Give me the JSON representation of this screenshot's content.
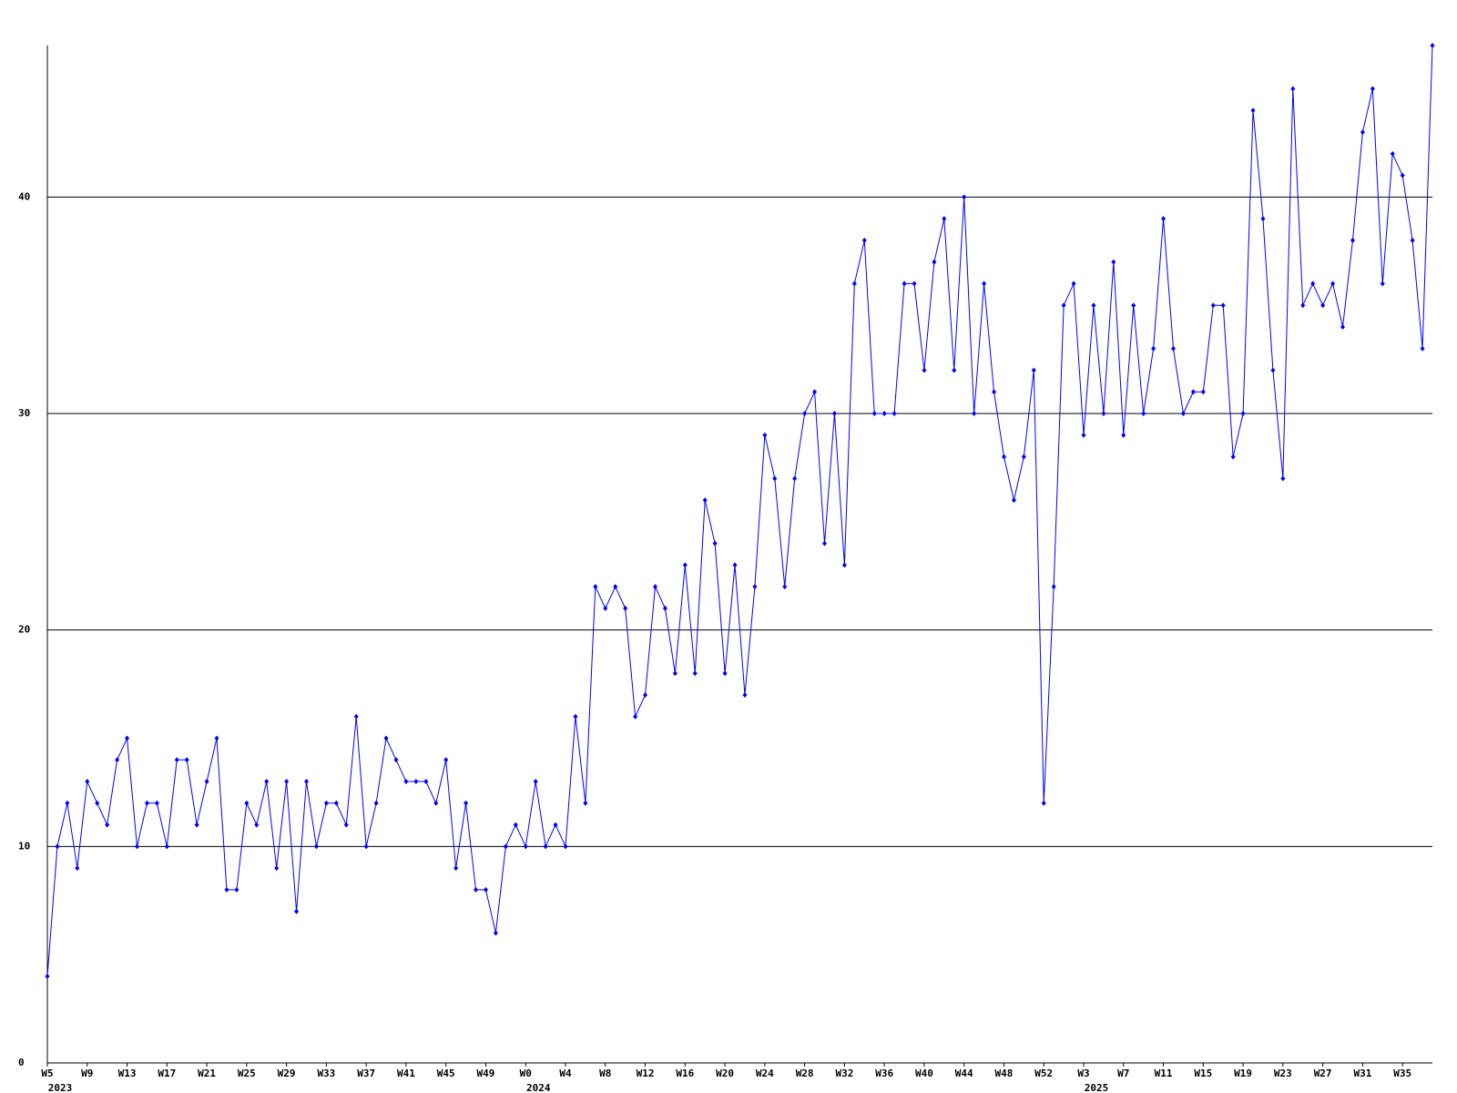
{
  "chart_data": {
    "type": "line",
    "categories": [
      "W5",
      null,
      null,
      null,
      "W9",
      null,
      null,
      null,
      "W13",
      null,
      null,
      null,
      "W17",
      null,
      null,
      null,
      "W21",
      null,
      null,
      null,
      "W25",
      null,
      null,
      null,
      "W29",
      null,
      null,
      null,
      "W33",
      null,
      null,
      null,
      "W37",
      null,
      null,
      null,
      "W41",
      null,
      null,
      null,
      "W45",
      null,
      null,
      null,
      "W49",
      null,
      null,
      null,
      "W0",
      null,
      null,
      null,
      "W4",
      null,
      null,
      null,
      "W8",
      null,
      null,
      null,
      "W12",
      null,
      null,
      null,
      "W16",
      null,
      null,
      null,
      "W20",
      null,
      null,
      null,
      "W24",
      null,
      null,
      null,
      "W28",
      null,
      null,
      null,
      "W32",
      null,
      null,
      null,
      "W36",
      null,
      null,
      null,
      "W40",
      null,
      null,
      null,
      "W44",
      null,
      null,
      null,
      "W48",
      null,
      null,
      null,
      "W52",
      null,
      null,
      null,
      "W3",
      null,
      null,
      null,
      "W7",
      null,
      null,
      null,
      "W11",
      null,
      null,
      null,
      "W15",
      null,
      null,
      null,
      "W19",
      null,
      null,
      null,
      "W23",
      null,
      null,
      null,
      "W27",
      null,
      null,
      null,
      "W31",
      null,
      null,
      null,
      "W35",
      null,
      null,
      null
    ],
    "category_groups": [
      "2023",
      null,
      null,
      null,
      null,
      null,
      null,
      null,
      null,
      null,
      null,
      null,
      null,
      null,
      null,
      null,
      null,
      null,
      null,
      null,
      null,
      null,
      null,
      null,
      null,
      null,
      null,
      null,
      null,
      null,
      null,
      null,
      null,
      null,
      null,
      null,
      null,
      null,
      null,
      null,
      null,
      null,
      null,
      null,
      null,
      null,
      null,
      null,
      "2024",
      null,
      null,
      null,
      null,
      null,
      null,
      null,
      null,
      null,
      null,
      null,
      null,
      null,
      null,
      null,
      null,
      null,
      null,
      null,
      null,
      null,
      null,
      null,
      null,
      null,
      null,
      null,
      null,
      null,
      null,
      null,
      null,
      null,
      null,
      null,
      null,
      null,
      null,
      null,
      null,
      null,
      null,
      null,
      null,
      null,
      null,
      null,
      null,
      null,
      null,
      null,
      null,
      null,
      null,
      null,
      "2025",
      null,
      null,
      null,
      null,
      null,
      null,
      null,
      null,
      null,
      null,
      null,
      null,
      null,
      null,
      null,
      null,
      null,
      null,
      null,
      null,
      null,
      null,
      null,
      null,
      null,
      null,
      null,
      null,
      null,
      null,
      null,
      null,
      null,
      null,
      null
    ],
    "series": [
      {
        "color": "#0000ff",
        "values": [
          4,
          10,
          12,
          9,
          13,
          12,
          11,
          14,
          15,
          10,
          12,
          12,
          10,
          14,
          14,
          11,
          13,
          15,
          8,
          8,
          12,
          11,
          13,
          9,
          13,
          7,
          13,
          10,
          12,
          12,
          11,
          16,
          10,
          12,
          15,
          14,
          13,
          13,
          13,
          12,
          14,
          9,
          12,
          8,
          8,
          6,
          10,
          11,
          10,
          13,
          10,
          11,
          10,
          16,
          12,
          22,
          21,
          22,
          21,
          16,
          17,
          22,
          21,
          18,
          23,
          18,
          26,
          24,
          18,
          23,
          17,
          22,
          29,
          27,
          22,
          27,
          30,
          31,
          24,
          30,
          23,
          36,
          38,
          30,
          30,
          30,
          36,
          36,
          32,
          37,
          39,
          32,
          40,
          30,
          36,
          31,
          28,
          26,
          28,
          32,
          12,
          22,
          35,
          36,
          29,
          35,
          30,
          37,
          29,
          35,
          30,
          33,
          39,
          33,
          30,
          31,
          31,
          35,
          35,
          28,
          30,
          44,
          39,
          32,
          27,
          45,
          35,
          36,
          35,
          36,
          34,
          38,
          43,
          45,
          36,
          42,
          41,
          38,
          33,
          47
        ]
      }
    ],
    "ylim": [
      0,
      47
    ],
    "yticks": [
      0,
      10,
      20,
      30,
      40
    ],
    "grid": true
  }
}
